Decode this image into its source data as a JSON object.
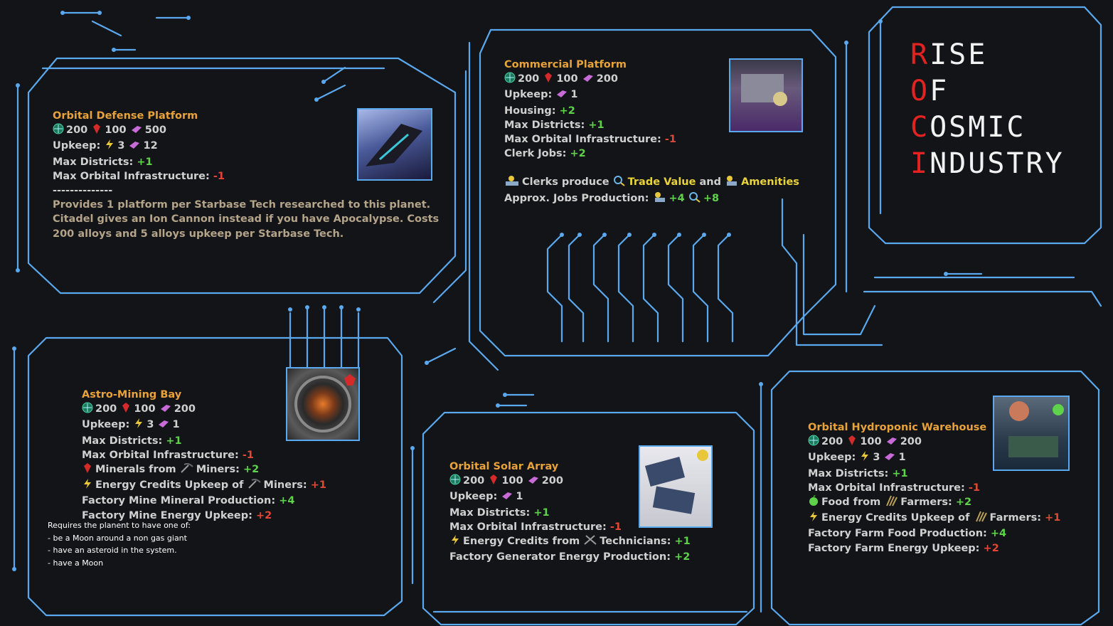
{
  "logo": {
    "lines": [
      {
        "initial": "R",
        "rest": "ISE"
      },
      {
        "initial": "O",
        "rest": "F"
      },
      {
        "initial": "C",
        "rest": "OSMIC"
      },
      {
        "initial": "I",
        "rest": "NDUSTRY"
      }
    ]
  },
  "icons": {
    "energy": "energy-credit-icon",
    "minerals": "mineral-gem-icon",
    "alloys": "alloy-bar-icon",
    "food": "food-apple-icon",
    "farmer": "farmer-wheat-icon",
    "miner": "miner-pickaxe-icon",
    "technician": "technician-tools-icon",
    "clerk": "clerk-desk-icon",
    "trade": "trade-value-icon",
    "amenities": "amenities-icon",
    "cost": "cost-globe-icon"
  },
  "colors": {
    "accent": "#e8a23a",
    "positive": "#5ed24a",
    "negative": "#e04836",
    "circuit": "#5aa8ee",
    "highlight": "#e8d43a",
    "logo_red": "#e32222"
  },
  "orbital_defense": {
    "title": "Orbital Defense Platform",
    "cost": {
      "energy": "200",
      "minerals": "100",
      "alloys": "500"
    },
    "upkeep_label": "Upkeep:",
    "upkeep_energy": "3",
    "upkeep_alloys": "12",
    "districts_label": "Max Districts:",
    "districts_value": "+1",
    "infra_label": "Max Orbital Infrastructure:",
    "infra_value": "-1",
    "divider": "--------------",
    "desc1": "Provides 1 platform per Starbase Tech researched to this planet.",
    "desc2": "Citadel gives an Ion Cannon instead if you have Apocalypse. Costs",
    "desc3": "200 alloys and 5 alloys upkeep per Starbase Tech."
  },
  "commercial": {
    "title": "Commercial Platform",
    "cost": {
      "energy": "200",
      "minerals": "100",
      "alloys": "200"
    },
    "upkeep_label": "Upkeep:",
    "upkeep_alloys": "1",
    "housing_label": "Housing:",
    "housing_value": "+2",
    "districts_label": "Max Districts:",
    "districts_value": "+1",
    "infra_label": "Max Orbital Infrastructure:",
    "infra_value": "-1",
    "clerk_label": "Clerk Jobs:",
    "clerk_value": "+2",
    "produce_a": "Clerks produce",
    "trade_value": "Trade Value",
    "produce_and": "and",
    "amenities": "Amenities",
    "approx_label": "Approx. Jobs Production:",
    "approx_amen": "+4",
    "approx_trade": "+8"
  },
  "astro": {
    "title": "Astro-Mining Bay",
    "cost": {
      "energy": "200",
      "minerals": "100",
      "alloys": "200"
    },
    "upkeep_label": "Upkeep:",
    "upkeep_energy": "3",
    "upkeep_alloys": "1",
    "districts_label": "Max Districts:",
    "districts_value": "+1",
    "infra_label": "Max Orbital Infrastructure:",
    "infra_value": "-1",
    "minerals_a": "Minerals from",
    "minerals_b": "Miners:",
    "minerals_value": "+2",
    "energy_a": "Energy Credits Upkeep of",
    "energy_b": "Miners:",
    "energy_value": "+1",
    "fm_prod_label": "Factory Mine Mineral Production:",
    "fm_prod_value": "+4",
    "fm_up_label": "Factory Mine Energy Upkeep:",
    "fm_up_value": "+2"
  },
  "requirements": {
    "heading": "Requires the planent to have one of:",
    "items": [
      "- be a Moon around a non gas giant",
      "- have an asteroid in the system.",
      "- have a Moon"
    ]
  },
  "solar": {
    "title": "Orbital Solar Array",
    "cost": {
      "energy": "200",
      "minerals": "100",
      "alloys": "200"
    },
    "upkeep_label": "Upkeep:",
    "upkeep_alloys": "1",
    "districts_label": "Max Districts:",
    "districts_value": "+1",
    "infra_label": "Max Orbital Infrastructure:",
    "infra_value": "-1",
    "energy_a": "Energy Credits from",
    "energy_b": "Technicians:",
    "energy_value": "+1",
    "fg_label": "Factory Generator Energy Production:",
    "fg_value": "+2"
  },
  "hydro": {
    "title": "Orbital Hydroponic Warehouse",
    "cost": {
      "energy": "200",
      "minerals": "100",
      "alloys": "200"
    },
    "upkeep_label": "Upkeep:",
    "upkeep_energy": "3",
    "upkeep_alloys": "1",
    "districts_label": "Max Districts:",
    "districts_value": "+1",
    "infra_label": "Max Orbital Infrastructure:",
    "infra_value": "-1",
    "food_a": "Food from",
    "food_b": "Farmers:",
    "food_value": "+2",
    "energy_a": "Energy Credits Upkeep of",
    "energy_b": "Farmers:",
    "energy_value": "+1",
    "ff_prod_label": "Factory Farm Food Production:",
    "ff_prod_value": "+4",
    "ff_up_label": "Factory Farm Energy Upkeep:",
    "ff_up_value": "+2"
  }
}
